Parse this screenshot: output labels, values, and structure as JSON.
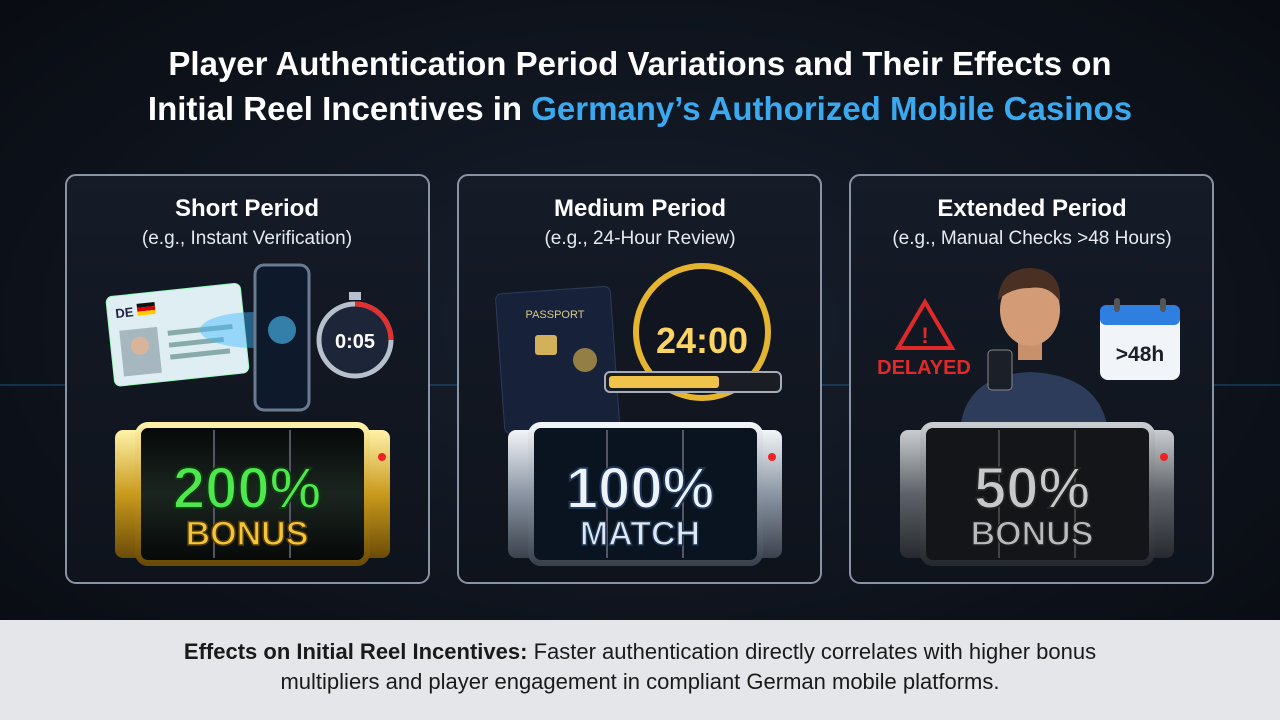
{
  "header": {
    "title_line1": "Player Authentication Period Variations and Their Effects on",
    "title_line2_prefix": "Initial Reel Incentives in ",
    "title_line2_highlight": "Germany’s Authorized Mobile Casinos"
  },
  "panels": [
    {
      "title": "Short Period",
      "subtitle": "(e.g., Instant Verification)",
      "id_label": "DE",
      "timer": "0:05",
      "reel_value": "200%",
      "reel_word": "BONUS"
    },
    {
      "title": "Medium Period",
      "subtitle": "(e.g., 24-Hour Review)",
      "passport_label": "PASSPORT",
      "timer": "24:00",
      "reel_value": "100%",
      "reel_word": "MATCH"
    },
    {
      "title": "Extended Period",
      "subtitle": "(e.g., Manual Checks >48 Hours)",
      "status": "DELAYED",
      "timer": ">48h",
      "reel_value": "50%",
      "reel_word": "BONUS"
    }
  ],
  "footer": {
    "lead": "Effects on Initial Reel Incentives:",
    "text_line1": " Faster authentication directly correlates with higher bonus",
    "text_line2": "multipliers and player engagement in compliant German mobile platforms."
  }
}
